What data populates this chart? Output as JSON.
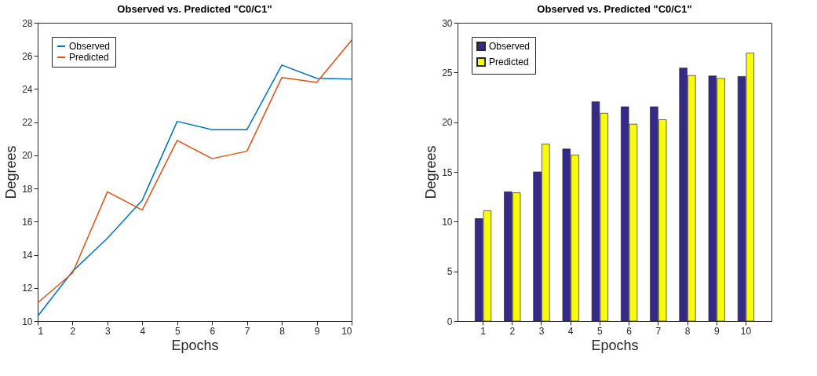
{
  "chart_data": [
    {
      "type": "line",
      "title": "Observed vs. Predicted \"C0/C1\"",
      "xlabel": "Epochs",
      "ylabel": "Degrees",
      "x": [
        1,
        2,
        3,
        4,
        5,
        6,
        7,
        8,
        9,
        10
      ],
      "series": [
        {
          "name": "Observed",
          "color": "#0072bd",
          "values": [
            10.3,
            13.0,
            15.0,
            17.3,
            22.05,
            21.55,
            21.55,
            25.45,
            24.65,
            24.6
          ]
        },
        {
          "name": "Predicted",
          "color": "#d95319",
          "values": [
            11.1,
            12.9,
            17.8,
            16.7,
            20.9,
            19.8,
            20.25,
            24.7,
            24.4,
            26.95
          ]
        }
      ],
      "xlim": [
        1,
        10
      ],
      "xticks": [
        1,
        2,
        3,
        4,
        5,
        6,
        7,
        8,
        9,
        10
      ],
      "ylim": [
        10,
        28
      ],
      "yticks": [
        10,
        12,
        14,
        16,
        18,
        20,
        22,
        24,
        26,
        28
      ],
      "grid": false,
      "legend": "top left",
      "line_style": "solid",
      "marker": "none"
    },
    {
      "type": "bar",
      "title": "Observed vs. Predicted \"C0/C1\"",
      "xlabel": "Epochs",
      "ylabel": "Degrees",
      "categories": [
        "1",
        "2",
        "3",
        "4",
        "5",
        "6",
        "7",
        "8",
        "9",
        "10"
      ],
      "series": [
        {
          "name": "Observed",
          "color": "#352a87",
          "values": [
            10.3,
            13.0,
            15.0,
            17.3,
            22.05,
            21.55,
            21.55,
            25.45,
            24.65,
            24.6
          ]
        },
        {
          "name": "Predicted",
          "color": "#f9fb0e",
          "values": [
            11.1,
            12.9,
            17.8,
            16.7,
            20.9,
            19.8,
            20.25,
            24.7,
            24.4,
            26.95
          ]
        }
      ],
      "ylim": [
        0,
        30
      ],
      "yticks": [
        0,
        5,
        10,
        15,
        20,
        25,
        30
      ],
      "grid": false,
      "legend": "top left"
    }
  ]
}
